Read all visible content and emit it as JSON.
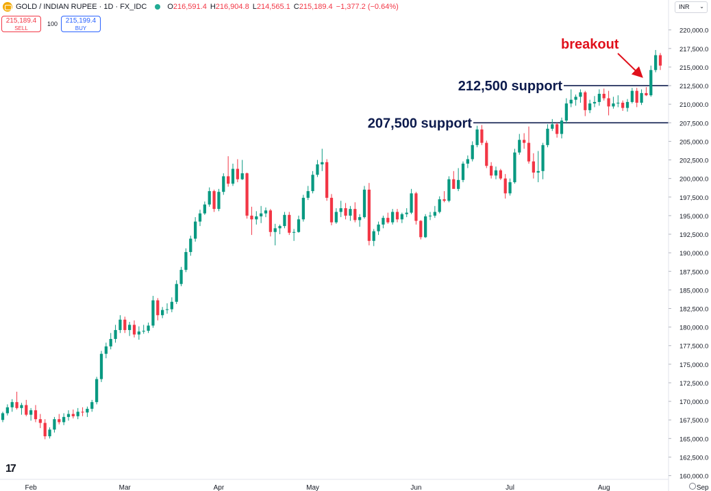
{
  "header": {
    "symbol": "GOLD / INDIAN RUPEE · 1D · FX_IDC",
    "o_key": "O",
    "o_val": "216,591.4",
    "h_key": "H",
    "h_val": "216,904.8",
    "l_key": "L",
    "l_val": "214,565.1",
    "c_key": "C",
    "c_val": "215,189.4",
    "change": "−1,377.2 (−0.64%)"
  },
  "trade": {
    "sell_price": "215,189.4",
    "sell_label": "SELL",
    "qty": "100",
    "buy_price": "215,199.4",
    "buy_label": "BUY"
  },
  "currency": "INR",
  "chart_data": {
    "type": "candlestick",
    "y_tick_labels": [
      "220,000.0",
      "217,500.0",
      "215,000.0",
      "212,500.0",
      "210,000.0",
      "207,500.0",
      "205,000.0",
      "202,500.0",
      "200,000.0",
      "197,500.0",
      "195,000.0",
      "192,500.0",
      "190,000.0",
      "187,500.0",
      "185,000.0",
      "182,500.0",
      "180,000.0",
      "177,500.0",
      "175,000.0",
      "172,500.0",
      "170,000.0",
      "167,500.0",
      "165,000.0",
      "162,500.0",
      "160,000.0"
    ],
    "y_ticks": [
      220000,
      217500,
      215000,
      212500,
      210000,
      207500,
      205000,
      202500,
      200000,
      197500,
      195000,
      192500,
      190000,
      187500,
      185000,
      182500,
      180000,
      177500,
      175000,
      172500,
      170000,
      167500,
      165000,
      162500,
      160000
    ],
    "ylim": [
      159500,
      222000
    ],
    "x_labels": [
      "Feb",
      "Mar",
      "Apr",
      "May",
      "Jun",
      "Jul",
      "Aug",
      "Sep"
    ],
    "x_label_positions": [
      6,
      26,
      46,
      66,
      88,
      108,
      128,
      149
    ],
    "candles": [
      [
        167500,
        168600,
        167200,
        168400
      ],
      [
        168400,
        169600,
        168100,
        169200
      ],
      [
        169200,
        170300,
        168600,
        169900
      ],
      [
        169900,
        171300,
        168900,
        169100
      ],
      [
        169100,
        169800,
        168200,
        169500
      ],
      [
        169500,
        170200,
        168000,
        168200
      ],
      [
        168200,
        169100,
        167400,
        168800
      ],
      [
        168800,
        169500,
        167200,
        167600
      ],
      [
        167600,
        168300,
        166400,
        167100
      ],
      [
        167100,
        167600,
        164900,
        165300
      ],
      [
        165300,
        166500,
        165000,
        166200
      ],
      [
        166200,
        167900,
        165800,
        167600
      ],
      [
        167600,
        168300,
        166900,
        167200
      ],
      [
        167200,
        168400,
        166800,
        167900
      ],
      [
        167900,
        168800,
        167400,
        168300
      ],
      [
        168300,
        168900,
        167700,
        168000
      ],
      [
        168000,
        169100,
        167600,
        168600
      ],
      [
        168600,
        169200,
        168000,
        168500
      ],
      [
        168500,
        169300,
        167900,
        169000
      ],
      [
        169000,
        170200,
        168600,
        169900
      ],
      [
        169900,
        173300,
        169600,
        173000
      ],
      [
        173000,
        176800,
        172600,
        176400
      ],
      [
        176400,
        177900,
        175800,
        177400
      ],
      [
        177400,
        179200,
        177000,
        178400
      ],
      [
        178400,
        180300,
        177900,
        179600
      ],
      [
        179600,
        181600,
        179200,
        181000
      ],
      [
        181000,
        181400,
        179200,
        179600
      ],
      [
        179600,
        180700,
        178800,
        180300
      ],
      [
        180300,
        180900,
        178600,
        179000
      ],
      [
        179000,
        180100,
        178300,
        179400
      ],
      [
        179400,
        180300,
        179100,
        179500
      ],
      [
        179500,
        180600,
        179200,
        180200
      ],
      [
        180200,
        184200,
        179900,
        183600
      ],
      [
        183600,
        183900,
        180900,
        181600
      ],
      [
        181600,
        182700,
        181200,
        182300
      ],
      [
        182300,
        183200,
        181800,
        182400
      ],
      [
        182400,
        184000,
        182000,
        183400
      ],
      [
        183400,
        186300,
        183100,
        185800
      ],
      [
        185800,
        188100,
        185500,
        187700
      ],
      [
        187700,
        190600,
        187400,
        190100
      ],
      [
        190100,
        192300,
        189600,
        191900
      ],
      [
        191900,
        194800,
        191500,
        194200
      ],
      [
        194200,
        195800,
        193600,
        195300
      ],
      [
        195300,
        196900,
        195100,
        196500
      ],
      [
        196500,
        198800,
        196200,
        198300
      ],
      [
        198300,
        198500,
        195500,
        195900
      ],
      [
        195900,
        198600,
        195600,
        198200
      ],
      [
        198200,
        200700,
        197800,
        200300
      ],
      [
        200300,
        203000,
        198900,
        199300
      ],
      [
        199300,
        202000,
        199000,
        201300
      ],
      [
        201300,
        202600,
        199500,
        199900
      ],
      [
        199900,
        202500,
        199800,
        200700
      ],
      [
        200700,
        200800,
        194600,
        195000
      ],
      [
        195000,
        196200,
        192400,
        194500
      ],
      [
        194500,
        195600,
        193800,
        194900
      ],
      [
        194900,
        196300,
        194000,
        195300
      ],
      [
        195300,
        196100,
        194800,
        195700
      ],
      [
        195700,
        195900,
        192200,
        192800
      ],
      [
        192800,
        193900,
        191000,
        193300
      ],
      [
        193300,
        193800,
        192500,
        193600
      ],
      [
        193600,
        195500,
        193300,
        195100
      ],
      [
        195100,
        195500,
        192400,
        192700
      ],
      [
        192700,
        193200,
        191600,
        192800
      ],
      [
        192800,
        195000,
        192700,
        194500
      ],
      [
        194500,
        197800,
        194200,
        197400
      ],
      [
        197400,
        199000,
        197100,
        198300
      ],
      [
        198300,
        201000,
        198000,
        200500
      ],
      [
        200500,
        202500,
        200200,
        201900
      ],
      [
        201900,
        204000,
        201000,
        202200
      ],
      [
        202200,
        202600,
        197000,
        197400
      ],
      [
        197400,
        197900,
        193700,
        194100
      ],
      [
        194100,
        196000,
        193900,
        195500
      ],
      [
        195500,
        197000,
        194800,
        196000
      ],
      [
        196000,
        196700,
        194500,
        195000
      ],
      [
        195000,
        196300,
        194300,
        195900
      ],
      [
        195900,
        196800,
        194100,
        194400
      ],
      [
        194400,
        195200,
        193500,
        194800
      ],
      [
        194800,
        199000,
        194600,
        198500
      ],
      [
        198500,
        199400,
        191000,
        191600
      ],
      [
        191600,
        193200,
        190900,
        192900
      ],
      [
        192900,
        194200,
        192400,
        193800
      ],
      [
        193800,
        195000,
        193300,
        194700
      ],
      [
        194700,
        195400,
        193900,
        194100
      ],
      [
        194100,
        195900,
        193800,
        195500
      ],
      [
        195500,
        195900,
        194100,
        194500
      ],
      [
        194500,
        195400,
        194000,
        195200
      ],
      [
        195200,
        196000,
        194800,
        195400
      ],
      [
        195400,
        198600,
        195200,
        198000
      ],
      [
        198000,
        198200,
        193800,
        194300
      ],
      [
        194300,
        194400,
        191800,
        192100
      ],
      [
        192100,
        195200,
        192000,
        194900
      ],
      [
        194900,
        195500,
        194400,
        195000
      ],
      [
        195000,
        196300,
        194700,
        195500
      ],
      [
        195500,
        197600,
        195300,
        197200
      ],
      [
        197200,
        198300,
        196800,
        197000
      ],
      [
        197000,
        200300,
        196800,
        199900
      ],
      [
        199900,
        201000,
        199200,
        198600
      ],
      [
        198600,
        201400,
        198300,
        199800
      ],
      [
        199800,
        202300,
        199500,
        202000
      ],
      [
        202000,
        203100,
        201400,
        202600
      ],
      [
        202600,
        205000,
        202300,
        204500
      ],
      [
        204500,
        207100,
        204200,
        206600
      ],
      [
        206600,
        207200,
        204500,
        204800
      ],
      [
        204800,
        205100,
        201400,
        201700
      ],
      [
        201700,
        202200,
        200000,
        200400
      ],
      [
        200400,
        201600,
        199900,
        201100
      ],
      [
        201100,
        201300,
        199800,
        200000
      ],
      [
        200000,
        200600,
        197300,
        198000
      ],
      [
        198000,
        200000,
        197700,
        199500
      ],
      [
        199500,
        204000,
        199300,
        203500
      ],
      [
        203500,
        206000,
        203200,
        205200
      ],
      [
        205200,
        206100,
        204000,
        204800
      ],
      [
        204800,
        207000,
        202000,
        202300
      ],
      [
        202300,
        203400,
        200000,
        200800
      ],
      [
        200800,
        203700,
        199500,
        201000
      ],
      [
        201000,
        204800,
        199900,
        204500
      ],
      [
        204500,
        207300,
        204200,
        206700
      ],
      [
        206700,
        208000,
        206400,
        207300
      ],
      [
        207300,
        207500,
        205500,
        206000
      ],
      [
        206000,
        208200,
        205400,
        207800
      ],
      [
        207800,
        210800,
        207400,
        210100
      ],
      [
        210100,
        212000,
        209600,
        210600
      ],
      [
        210600,
        211300,
        209800,
        211000
      ],
      [
        211000,
        212000,
        210200,
        211600
      ],
      [
        211600,
        211800,
        208400,
        209200
      ],
      [
        209200,
        210600,
        208800,
        210100
      ],
      [
        210100,
        211100,
        209600,
        210300
      ],
      [
        210300,
        212000,
        209800,
        211400
      ],
      [
        211400,
        212100,
        210500,
        210800
      ],
      [
        210800,
        211800,
        208500,
        209700
      ],
      [
        209700,
        211000,
        209400,
        210100
      ],
      [
        210100,
        211200,
        209600,
        210200
      ],
      [
        210200,
        210500,
        209100,
        209500
      ],
      [
        209500,
        210700,
        209000,
        210300
      ],
      [
        210300,
        212200,
        210100,
        211800
      ],
      [
        211800,
        212200,
        209600,
        210200
      ],
      [
        210200,
        212000,
        209900,
        211500
      ],
      [
        211500,
        212300,
        211100,
        211200
      ],
      [
        211200,
        215200,
        211000,
        214600
      ],
      [
        214600,
        217300,
        214300,
        216600
      ],
      [
        216600,
        216900,
        214600,
        215200
      ]
    ],
    "annotations": [
      {
        "text": "212,500 support",
        "value": 212500
      },
      {
        "text": "207,500 support",
        "value": 207500
      },
      {
        "text": "breakout"
      }
    ]
  }
}
